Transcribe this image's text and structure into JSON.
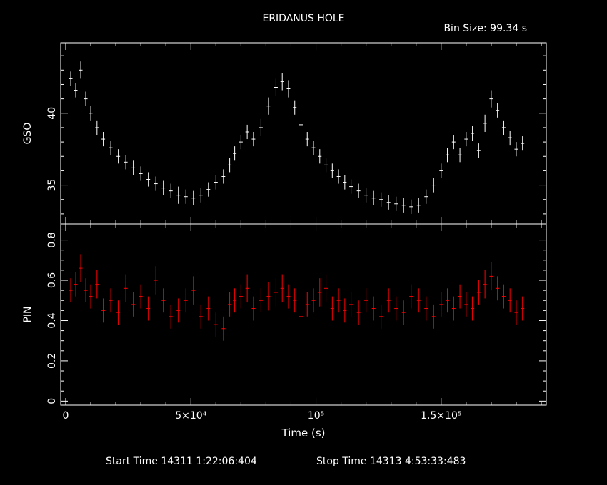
{
  "header": {
    "title": "ERIDANUS HOLE",
    "bin_size": "Bin Size: 99.34 s"
  },
  "footer": {
    "start_time": "Start Time 14311  1:22:06:404",
    "stop_time": "Stop Time 14313  4:53:33:483"
  },
  "colors": {
    "background": "#000000",
    "axes": "#ffffff",
    "gso_series": "#ffffff",
    "pin_series": "#ff0000"
  },
  "chart_data": [
    {
      "type": "scatter",
      "name": "gso-panel",
      "ylabel": "GSO",
      "xlim": [
        -2000,
        192000
      ],
      "ylim": [
        32.3,
        44.9
      ],
      "y_ticks": [
        "35",
        "40"
      ],
      "x_ticks_shown": false,
      "error_bars": true,
      "series": [
        {
          "name": "",
          "x": [
            2000,
            4000,
            6000,
            8000,
            10000,
            12500,
            15000,
            18000,
            21000,
            24000,
            27000,
            30000,
            33000,
            36000,
            39000,
            42000,
            45000,
            48000,
            51000,
            54000,
            57000,
            60000,
            63000,
            65500,
            67500,
            70000,
            72500,
            75000,
            78000,
            81000,
            84000,
            86500,
            89000,
            91500,
            94000,
            96500,
            99000,
            101500,
            104000,
            106500,
            109000,
            111500,
            114000,
            117000,
            120000,
            123000,
            126000,
            129000,
            132000,
            135000,
            138000,
            141000,
            144000,
            147000,
            150000,
            152500,
            155000,
            157500,
            160000,
            162500,
            165000,
            167500,
            170000,
            172500,
            175000,
            177500,
            180000,
            182500
          ],
          "y": [
            42.4,
            41.6,
            43.0,
            41.0,
            40.0,
            39.0,
            38.2,
            37.6,
            37.0,
            36.6,
            36.2,
            35.8,
            35.4,
            35.1,
            34.8,
            34.6,
            34.3,
            34.2,
            34.1,
            34.3,
            34.7,
            35.2,
            35.6,
            36.4,
            37.2,
            38.0,
            38.7,
            38.2,
            39.0,
            40.5,
            41.8,
            42.2,
            41.7,
            40.4,
            39.2,
            38.2,
            37.6,
            37.0,
            36.4,
            36.0,
            35.6,
            35.2,
            34.9,
            34.6,
            34.3,
            34.1,
            34.0,
            33.8,
            33.7,
            33.6,
            33.5,
            33.6,
            34.2,
            35.0,
            36.0,
            37.1,
            38.0,
            37.1,
            38.2,
            38.6,
            37.4,
            39.3,
            41.0,
            40.2,
            39.0,
            38.3,
            37.5,
            37.9
          ],
          "yerr": [
            0.5,
            0.5,
            0.6,
            0.5,
            0.5,
            0.5,
            0.5,
            0.5,
            0.5,
            0.5,
            0.5,
            0.5,
            0.5,
            0.5,
            0.5,
            0.5,
            0.6,
            0.5,
            0.5,
            0.5,
            0.5,
            0.5,
            0.5,
            0.5,
            0.5,
            0.5,
            0.5,
            0.5,
            0.6,
            0.6,
            0.6,
            0.6,
            0.6,
            0.5,
            0.5,
            0.5,
            0.5,
            0.5,
            0.5,
            0.5,
            0.5,
            0.5,
            0.5,
            0.5,
            0.5,
            0.5,
            0.5,
            0.5,
            0.5,
            0.5,
            0.5,
            0.5,
            0.5,
            0.5,
            0.5,
            0.5,
            0.5,
            0.5,
            0.5,
            0.5,
            0.5,
            0.6,
            0.6,
            0.5,
            0.5,
            0.5,
            0.5,
            0.5
          ]
        }
      ]
    },
    {
      "type": "scatter",
      "name": "pin-panel",
      "ylabel": "PIN",
      "xlabel": "Time (s)",
      "xlim": [
        -2000,
        192000
      ],
      "ylim": [
        -0.02,
        0.88
      ],
      "x_ticks": [
        "0",
        "5×10⁴",
        "10⁵",
        "1.5×10⁵"
      ],
      "y_ticks": [
        "0",
        "0.2",
        "0.4",
        "0.6",
        "0.8"
      ],
      "error_bars": true,
      "series": [
        {
          "name": "",
          "x": [
            2000,
            4000,
            6000,
            8000,
            10000,
            12500,
            15000,
            18000,
            21000,
            24000,
            27000,
            30000,
            33000,
            36000,
            39000,
            42000,
            45000,
            48000,
            51000,
            54000,
            57000,
            60000,
            63000,
            65500,
            67500,
            70000,
            72500,
            75000,
            78000,
            81000,
            84000,
            86500,
            89000,
            91500,
            94000,
            96500,
            99000,
            101500,
            104000,
            106500,
            109000,
            111500,
            114000,
            117000,
            120000,
            123000,
            126000,
            129000,
            132000,
            135000,
            138000,
            141000,
            144000,
            147000,
            150000,
            152500,
            155000,
            157500,
            160000,
            162500,
            165000,
            167500,
            170000,
            172500,
            175000,
            177500,
            180000,
            182500
          ],
          "y": [
            0.55,
            0.58,
            0.66,
            0.55,
            0.52,
            0.58,
            0.45,
            0.5,
            0.44,
            0.56,
            0.48,
            0.52,
            0.46,
            0.6,
            0.5,
            0.42,
            0.45,
            0.5,
            0.55,
            0.42,
            0.46,
            0.38,
            0.36,
            0.48,
            0.5,
            0.52,
            0.56,
            0.46,
            0.5,
            0.52,
            0.54,
            0.56,
            0.52,
            0.5,
            0.42,
            0.48,
            0.5,
            0.54,
            0.56,
            0.46,
            0.5,
            0.45,
            0.48,
            0.44,
            0.5,
            0.46,
            0.42,
            0.5,
            0.46,
            0.44,
            0.52,
            0.5,
            0.46,
            0.42,
            0.48,
            0.5,
            0.46,
            0.52,
            0.48,
            0.46,
            0.54,
            0.58,
            0.62,
            0.56,
            0.52,
            0.5,
            0.44,
            0.46
          ],
          "yerr": [
            0.06,
            0.06,
            0.07,
            0.06,
            0.06,
            0.07,
            0.06,
            0.06,
            0.06,
            0.07,
            0.06,
            0.06,
            0.06,
            0.07,
            0.06,
            0.06,
            0.06,
            0.06,
            0.07,
            0.06,
            0.06,
            0.06,
            0.06,
            0.06,
            0.06,
            0.06,
            0.07,
            0.06,
            0.06,
            0.07,
            0.07,
            0.07,
            0.06,
            0.06,
            0.06,
            0.06,
            0.06,
            0.07,
            0.07,
            0.06,
            0.06,
            0.06,
            0.06,
            0.06,
            0.06,
            0.06,
            0.06,
            0.06,
            0.06,
            0.06,
            0.06,
            0.06,
            0.06,
            0.06,
            0.06,
            0.06,
            0.06,
            0.06,
            0.06,
            0.06,
            0.06,
            0.07,
            0.07,
            0.06,
            0.06,
            0.06,
            0.06,
            0.06
          ]
        }
      ]
    }
  ]
}
